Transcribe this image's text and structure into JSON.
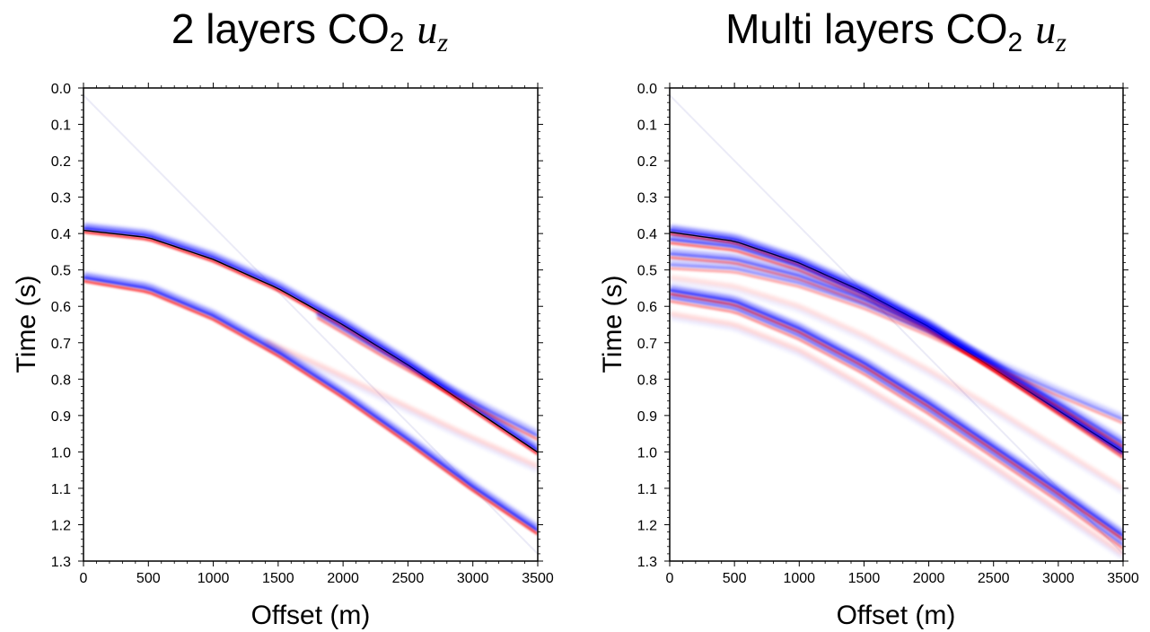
{
  "chart_data": [
    {
      "type": "line",
      "title": {
        "prefix": "2 layers  CO",
        "subscript": "2",
        "variable_main": "u",
        "variable_sub": "z"
      },
      "xlabel": "Offset (m)",
      "ylabel": "Time (s)",
      "xlim": [
        0,
        3500
      ],
      "ylim": [
        1.3,
        0.0
      ],
      "xticks": [
        0,
        500,
        1000,
        1500,
        2000,
        2500,
        3000,
        3500
      ],
      "yticks": [
        "0.0",
        "0.1",
        "0.2",
        "0.3",
        "0.4",
        "0.5",
        "0.6",
        "0.7",
        "0.8",
        "0.9",
        "1.0",
        "1.1",
        "1.2",
        "1.3"
      ],
      "colors": {
        "positive": "#ff0000",
        "negative": "#0000ff",
        "peak": "#000000"
      },
      "series": [
        {
          "x": [
            0,
            500,
            1000,
            1500,
            2000,
            2500,
            3000,
            3500
          ],
          "t": [
            0.39,
            0.41,
            0.47,
            0.55,
            0.65,
            0.76,
            0.88,
            1.0
          ],
          "strength": 1.0,
          "kind": "bluered",
          "core": true
        },
        {
          "x": [
            1800,
            2300,
            2800,
            3200,
            3500
          ],
          "t": [
            0.625,
            0.73,
            0.83,
            0.905,
            0.96
          ],
          "strength": 0.6,
          "kind": "bluered"
        },
        {
          "x": [
            0,
            500,
            1000,
            1500,
            2000,
            2500,
            3000,
            3500
          ],
          "t": [
            0.525,
            0.555,
            0.63,
            0.73,
            0.845,
            0.97,
            1.1,
            1.22
          ],
          "strength": 0.95,
          "kind": "bluered"
        },
        {
          "x": [
            1400,
            1900,
            2400,
            2900,
            3500
          ],
          "t": [
            0.695,
            0.775,
            0.86,
            0.945,
            1.04
          ],
          "strength": 0.3,
          "kind": "red"
        }
      ]
    },
    {
      "type": "line",
      "title": {
        "prefix": "Multi layers  CO",
        "subscript": "2",
        "variable_main": "u",
        "variable_sub": "z"
      },
      "xlabel": "Offset (m)",
      "ylabel": "Time (s)",
      "xlim": [
        0,
        3500
      ],
      "ylim": [
        1.3,
        0.0
      ],
      "xticks": [
        0,
        500,
        1000,
        1500,
        2000,
        2500,
        3000,
        3500
      ],
      "yticks": [
        "0.0",
        "0.1",
        "0.2",
        "0.3",
        "0.4",
        "0.5",
        "0.6",
        "0.7",
        "0.8",
        "0.9",
        "1.0",
        "1.1",
        "1.2",
        "1.3"
      ],
      "colors": {
        "positive": "#ff0000",
        "negative": "#0000ff",
        "peak": "#000000"
      },
      "series": [
        {
          "x": [
            0,
            500,
            1000,
            1500,
            2000,
            2500,
            3000,
            3500
          ],
          "t": [
            0.395,
            0.42,
            0.48,
            0.56,
            0.655,
            0.77,
            0.885,
            1.0
          ],
          "strength": 1.0,
          "kind": "bluered",
          "core": true
        },
        {
          "x": [
            0,
            500,
            1000,
            1500,
            2000,
            2500,
            3000,
            3500
          ],
          "t": [
            0.42,
            0.44,
            0.495,
            0.57,
            0.66,
            0.77,
            0.89,
            1.01
          ],
          "strength": 0.75,
          "kind": "bluered"
        },
        {
          "x": [
            0,
            500,
            1000,
            1500,
            2000,
            2500,
            3000,
            3500
          ],
          "t": [
            0.46,
            0.475,
            0.52,
            0.585,
            0.665,
            0.765,
            0.87,
            0.98
          ],
          "strength": 0.65,
          "kind": "bluered"
        },
        {
          "x": [
            0,
            500,
            1000,
            1500,
            2000,
            2500,
            3000,
            3500
          ],
          "t": [
            0.49,
            0.5,
            0.54,
            0.6,
            0.675,
            0.76,
            0.84,
            0.915
          ],
          "strength": 0.45,
          "kind": "bluered"
        },
        {
          "x": [
            0,
            500,
            1000,
            1500,
            2000,
            2500,
            3000,
            3500
          ],
          "t": [
            0.56,
            0.59,
            0.665,
            0.76,
            0.87,
            0.99,
            1.11,
            1.235
          ],
          "strength": 0.9,
          "kind": "bluered"
        },
        {
          "x": [
            0,
            500,
            1000,
            1500,
            2000,
            2500,
            3000,
            3500
          ],
          "t": [
            0.58,
            0.61,
            0.685,
            0.78,
            0.89,
            1.01,
            1.13,
            1.26
          ],
          "strength": 0.55,
          "kind": "bluered"
        },
        {
          "x": [
            0,
            500,
            1000,
            1500,
            2000,
            2500,
            3000,
            3500
          ],
          "t": [
            0.62,
            0.65,
            0.72,
            0.82,
            0.925,
            1.04,
            1.16,
            1.28
          ],
          "strength": 0.3,
          "kind": "red"
        },
        {
          "x": [
            0,
            500,
            1000,
            1500,
            2000,
            2500,
            3000,
            3500
          ],
          "t": [
            0.52,
            0.545,
            0.6,
            0.68,
            0.775,
            0.88,
            0.99,
            1.1
          ],
          "strength": 0.25,
          "kind": "red"
        }
      ]
    }
  ]
}
